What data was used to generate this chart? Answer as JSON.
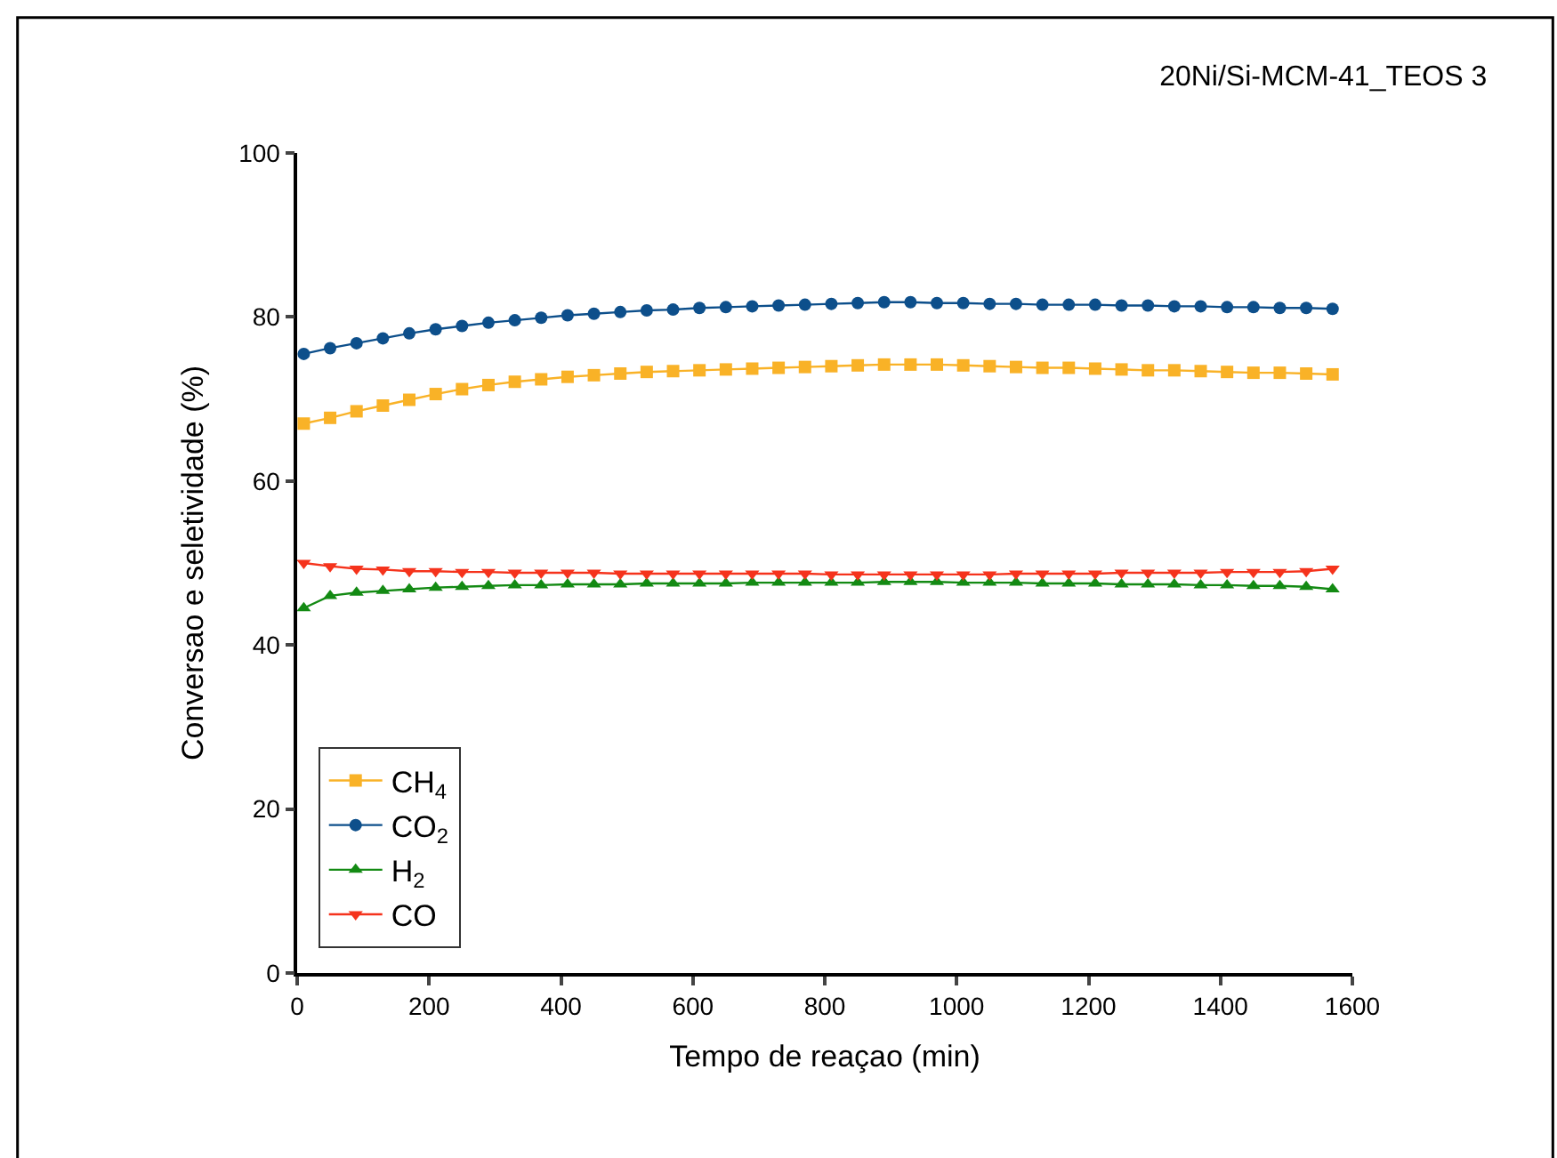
{
  "chart_data": {
    "type": "line",
    "title": "20Ni/Si-MCM-41_TEOS 3",
    "xlabel": "Tempo de reaçao (min)",
    "ylabel": "Conversao e seletividade (%)",
    "x": [
      10,
      50,
      90,
      130,
      170,
      210,
      250,
      290,
      330,
      370,
      410,
      450,
      490,
      530,
      570,
      610,
      650,
      690,
      730,
      770,
      810,
      850,
      890,
      930,
      970,
      1010,
      1050,
      1090,
      1130,
      1170,
      1210,
      1250,
      1290,
      1330,
      1370,
      1410,
      1450,
      1490,
      1530,
      1570
    ],
    "series": [
      {
        "name": "CH$_{4}$",
        "color": "#f9b227",
        "marker": "square",
        "values": [
          67.0,
          67.7,
          68.5,
          69.2,
          69.9,
          70.6,
          71.2,
          71.7,
          72.1,
          72.4,
          72.7,
          72.9,
          73.1,
          73.3,
          73.4,
          73.5,
          73.6,
          73.7,
          73.8,
          73.9,
          74.0,
          74.1,
          74.2,
          74.2,
          74.2,
          74.1,
          74.0,
          73.9,
          73.8,
          73.8,
          73.7,
          73.6,
          73.5,
          73.5,
          73.4,
          73.3,
          73.2,
          73.2,
          73.1,
          73.0
        ]
      },
      {
        "name": "CO$_{2}$",
        "color": "#0d4f8b",
        "marker": "circle",
        "values": [
          75.5,
          76.2,
          76.8,
          77.4,
          78.0,
          78.5,
          78.9,
          79.3,
          79.6,
          79.9,
          80.2,
          80.4,
          80.6,
          80.8,
          80.9,
          81.1,
          81.2,
          81.3,
          81.4,
          81.5,
          81.6,
          81.7,
          81.8,
          81.8,
          81.7,
          81.7,
          81.6,
          81.6,
          81.5,
          81.5,
          81.5,
          81.4,
          81.4,
          81.3,
          81.3,
          81.2,
          81.2,
          81.1,
          81.1,
          81.0
        ]
      },
      {
        "name": "H$_{2}$",
        "color": "#138a13",
        "marker": "triangle",
        "values": [
          44.5,
          46.0,
          46.4,
          46.6,
          46.8,
          47.0,
          47.1,
          47.2,
          47.3,
          47.3,
          47.4,
          47.4,
          47.4,
          47.5,
          47.5,
          47.5,
          47.5,
          47.6,
          47.6,
          47.6,
          47.6,
          47.6,
          47.7,
          47.7,
          47.7,
          47.6,
          47.6,
          47.6,
          47.5,
          47.5,
          47.5,
          47.4,
          47.4,
          47.4,
          47.3,
          47.3,
          47.2,
          47.2,
          47.1,
          46.8
        ]
      },
      {
        "name": "CO",
        "color": "#f5331c",
        "marker": "triangle-down",
        "values": [
          50.0,
          49.6,
          49.3,
          49.2,
          49.0,
          49.0,
          48.9,
          48.9,
          48.8,
          48.8,
          48.8,
          48.8,
          48.7,
          48.7,
          48.7,
          48.7,
          48.7,
          48.7,
          48.7,
          48.7,
          48.6,
          48.6,
          48.6,
          48.6,
          48.6,
          48.6,
          48.6,
          48.7,
          48.7,
          48.7,
          48.7,
          48.8,
          48.8,
          48.8,
          48.8,
          48.9,
          48.9,
          48.9,
          49.0,
          49.3
        ]
      }
    ],
    "xlim": [
      0,
      1600
    ],
    "xticks": [
      0,
      200,
      400,
      600,
      800,
      1000,
      1200,
      1400,
      1600
    ],
    "ylim": [
      0,
      100
    ],
    "yticks": [
      0,
      20,
      40,
      60,
      80,
      100
    ],
    "legend": "bottom left",
    "line_style": "solid"
  }
}
